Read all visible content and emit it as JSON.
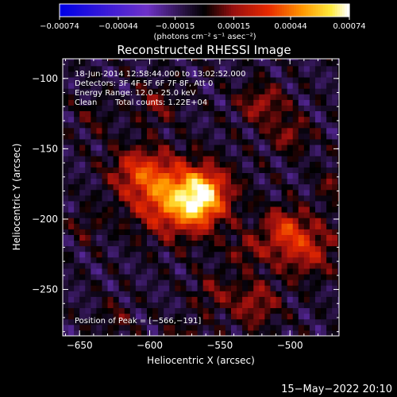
{
  "chart_data": {
    "type": "heatmap",
    "title": "Reconstructed RHESSI Image",
    "xlabel": "Heliocentric X (arcsec)",
    "ylabel": "Heliocentric Y (arcsec)",
    "xlim": [
      -662,
      -465
    ],
    "ylim": [
      -283,
      -86
    ],
    "x_ticks": [
      -650,
      -600,
      -550,
      -500
    ],
    "x_tick_labels": [
      "−650",
      "−600",
      "−550",
      "−500"
    ],
    "y_ticks": [
      -100,
      -150,
      -200,
      -250
    ],
    "y_tick_labels": [
      "−100",
      "−150",
      "−200",
      "−250"
    ],
    "colorbar": {
      "range": [
        -0.00074,
        0.00074
      ],
      "ticks": [
        -0.00074,
        -0.00044,
        -0.00015,
        0.00015,
        0.00044,
        0.00074
      ],
      "tick_labels": [
        "−0.00074",
        "−0.00044",
        "−0.00015",
        "0.00015",
        "0.00044",
        "0.00074"
      ],
      "unit_label": "(photons cm⁻² s⁻¹ asec⁻²)"
    },
    "sources": [
      {
        "x": -578,
        "y": -185,
        "sx": 22,
        "sy": 17,
        "amp": 0.00062
      },
      {
        "x": -608,
        "y": -165,
        "sx": 14,
        "sy": 12,
        "amp": 0.0003
      },
      {
        "x": -560,
        "y": -178,
        "sx": 10,
        "sy": 9,
        "amp": 0.00028
      },
      {
        "x": -565,
        "y": -191,
        "sx": 9,
        "sy": 9,
        "amp": 0.00025
      },
      {
        "x": -595,
        "y": -118,
        "sx": 10,
        "sy": 10,
        "amp": 0.00018
      },
      {
        "x": -520,
        "y": -118,
        "sx": 12,
        "sy": 10,
        "amp": 0.00024
      },
      {
        "x": -500,
        "y": -140,
        "sx": 10,
        "sy": 9,
        "amp": 0.0002
      },
      {
        "x": -490,
        "y": -220,
        "sx": 16,
        "sy": 14,
        "amp": 0.00032
      },
      {
        "x": -505,
        "y": -205,
        "sx": 10,
        "sy": 10,
        "amp": 0.00026
      },
      {
        "x": -525,
        "y": -260,
        "sx": 12,
        "sy": 12,
        "amp": 0.00024
      },
      {
        "x": -555,
        "y": -252,
        "sx": 10,
        "sy": 10,
        "amp": 0.00016
      },
      {
        "x": -530,
        "y": -222,
        "sx": 10,
        "sy": 8,
        "amp": 0.00018
      },
      {
        "x": -640,
        "y": -128,
        "sx": 10,
        "sy": 10,
        "amp": 0.0001
      },
      {
        "x": -645,
        "y": -205,
        "sx": 8,
        "sy": 8,
        "amp": 0.00012
      },
      {
        "x": -625,
        "y": -270,
        "sx": 9,
        "sy": 9,
        "amp": 0.00012
      },
      {
        "x": -575,
        "y": -282,
        "sx": 10,
        "sy": 8,
        "amp": 0.00012
      },
      {
        "x": -470,
        "y": -175,
        "sx": 8,
        "sy": 10,
        "amp": 0.00014
      }
    ],
    "annotations": {
      "time_range": "18-Jun-2014 12:58:44.000 to 13:02:52.000",
      "detectors": "Detectors: 3F 4F 5F 6F 7F 8F, Att 0",
      "energy": "Energy Range: 12.0 - 25.0 keV",
      "method": "Clean",
      "counts": "Total counts: 1.22E+04",
      "peak": "Position of Peak = [−566,−191]"
    }
  },
  "footer": {
    "date": "15−May−2022 20:10"
  }
}
